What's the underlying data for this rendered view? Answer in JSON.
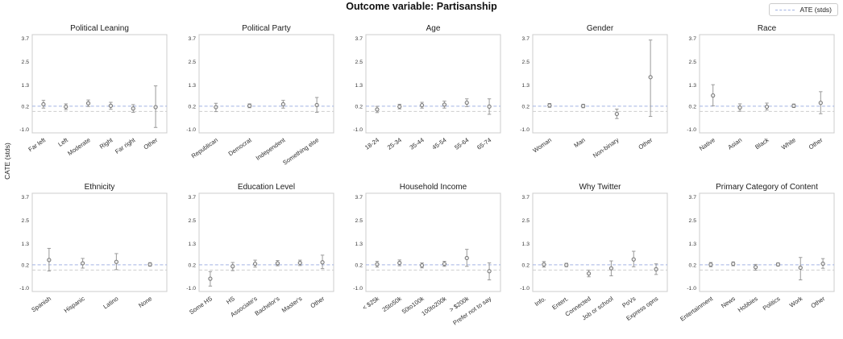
{
  "chart_data": {
    "type": "scatter",
    "title": "Outcome variable: Partisanship",
    "ylabel": "CATE (stds)",
    "legend": {
      "label": "ATE (stds)",
      "position": "top-right"
    },
    "grid": false,
    "ylim": [
      -1.18,
      3.9
    ],
    "yticks": [
      3.7,
      2.5,
      1.3,
      0.2,
      -1.0
    ],
    "reference_lines": {
      "ate": 0.2,
      "baseline": -0.07
    },
    "colors": {
      "ate_line": "#a3b3e3",
      "baseline_line": "#cdcdcd",
      "marker_edge": "#757575",
      "marker_fill": "#ebebeb",
      "error_bar": "#9a9a9a",
      "spine": "#cccccc"
    },
    "subplots": [
      {
        "title": "Political Leaning",
        "categories": [
          "Far left",
          "Left",
          "Moderate",
          "Right",
          "Far right",
          "Other"
        ],
        "values": [
          0.3,
          0.17,
          0.35,
          0.22,
          0.08,
          0.15
        ],
        "err_lo": [
          0.1,
          0.02,
          0.18,
          0.04,
          -0.12,
          -0.9
        ],
        "err_hi": [
          0.5,
          0.32,
          0.52,
          0.4,
          0.28,
          1.25
        ]
      },
      {
        "title": "Political Party",
        "categories": [
          "Republican",
          "Democrat",
          "Independent",
          "Something else"
        ],
        "values": [
          0.15,
          0.22,
          0.3,
          0.26
        ],
        "err_lo": [
          -0.08,
          0.12,
          0.1,
          -0.12
        ],
        "err_hi": [
          0.35,
          0.32,
          0.5,
          0.65
        ]
      },
      {
        "title": "Age",
        "categories": [
          "18-24",
          "25-34",
          "35-44",
          "45-54",
          "55-64",
          "65-74"
        ],
        "values": [
          0.03,
          0.18,
          0.25,
          0.28,
          0.38,
          0.18
        ],
        "err_lo": [
          -0.13,
          0.06,
          0.1,
          0.1,
          0.18,
          -0.22
        ],
        "err_hi": [
          0.19,
          0.3,
          0.4,
          0.46,
          0.58,
          0.58
        ]
      },
      {
        "title": "Gender",
        "categories": [
          "Woman",
          "Man",
          "Non-binary",
          "Other"
        ],
        "values": [
          0.24,
          0.21,
          -0.2,
          1.7
        ],
        "err_lo": [
          0.14,
          0.12,
          -0.44,
          -0.33
        ],
        "err_hi": [
          0.34,
          0.3,
          0.05,
          3.62
        ]
      },
      {
        "title": "Race",
        "categories": [
          "Native",
          "Asian",
          "Black",
          "White",
          "Other"
        ],
        "values": [
          0.75,
          0.13,
          0.17,
          0.22,
          0.37
        ],
        "err_lo": [
          0.22,
          -0.06,
          0.0,
          0.13,
          -0.19
        ],
        "err_hi": [
          1.31,
          0.32,
          0.36,
          0.31,
          0.95
        ]
      },
      {
        "title": "Ethnicity",
        "categories": [
          "Spanish",
          "Hispanic",
          "Latino",
          "None"
        ],
        "values": [
          0.45,
          0.28,
          0.35,
          0.22
        ],
        "err_lo": [
          -0.12,
          0.03,
          -0.05,
          0.13
        ],
        "err_hi": [
          1.05,
          0.53,
          0.78,
          0.31
        ]
      },
      {
        "title": "Education Level",
        "categories": [
          "Some HS",
          "HS",
          "Associate's",
          "Bachelor's",
          "Master's",
          "Other"
        ],
        "values": [
          -0.52,
          0.12,
          0.25,
          0.28,
          0.3,
          0.33
        ],
        "err_lo": [
          -0.9,
          -0.1,
          0.08,
          0.15,
          0.16,
          0.0
        ],
        "err_hi": [
          -0.15,
          0.32,
          0.44,
          0.42,
          0.44,
          0.7
        ]
      },
      {
        "title": "Household Income",
        "categories": [
          "< $25k",
          "25to50k",
          "50to100k",
          "100to200k",
          "> $200k",
          "Prefer not to say"
        ],
        "values": [
          0.23,
          0.3,
          0.17,
          0.25,
          0.55,
          -0.13
        ],
        "err_lo": [
          0.08,
          0.15,
          0.04,
          0.12,
          0.12,
          -0.58
        ],
        "err_hi": [
          0.38,
          0.45,
          0.3,
          0.38,
          1.0,
          0.3
        ]
      },
      {
        "title": "Why Twitter",
        "categories": [
          "Info.",
          "Entert.",
          "Connected",
          "Job or school",
          "PoVs",
          "Express opns"
        ],
        "values": [
          0.22,
          0.19,
          -0.25,
          0.02,
          0.48,
          -0.03
        ],
        "err_lo": [
          0.08,
          0.1,
          -0.42,
          -0.37,
          0.1,
          -0.3
        ],
        "err_hi": [
          0.37,
          0.28,
          -0.08,
          0.4,
          0.9,
          0.25
        ]
      },
      {
        "title": "Primary Category of Content",
        "categories": [
          "Entertainment",
          "News",
          "Hobbies",
          "Politics",
          "Work",
          "Other"
        ],
        "values": [
          0.21,
          0.25,
          0.08,
          0.22,
          0.05,
          0.26
        ],
        "err_lo": [
          0.1,
          0.15,
          -0.08,
          0.14,
          -0.58,
          0.02
        ],
        "err_hi": [
          0.32,
          0.35,
          0.22,
          0.3,
          0.58,
          0.52
        ]
      }
    ]
  }
}
